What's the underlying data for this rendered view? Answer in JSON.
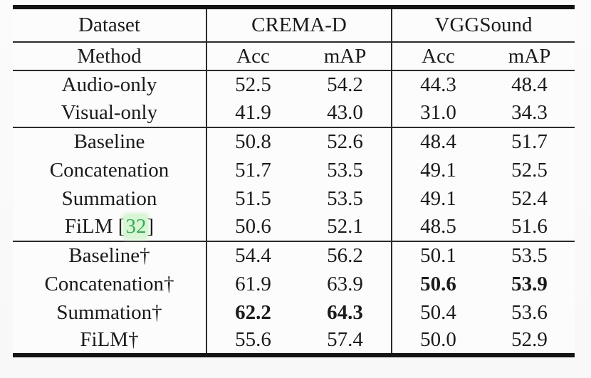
{
  "colors": {
    "text": "#1b1b1b",
    "rule": "#2b2b2b",
    "citation_green": "#2fae57",
    "citation_highlight": "#d9f6d4"
  },
  "header": {
    "dataset_label": "Dataset",
    "method_label": "Method",
    "groups": [
      {
        "name": "CREMA-D"
      },
      {
        "name": "VGGSound"
      }
    ],
    "subcols": [
      "Acc",
      "mAP",
      "Acc",
      "mAP"
    ]
  },
  "rows": [
    {
      "method": "Audio-only",
      "values": [
        "52.5",
        "54.2",
        "44.3",
        "48.4"
      ],
      "bold": [
        false,
        false,
        false,
        false
      ]
    },
    {
      "method": "Visual-only",
      "values": [
        "41.9",
        "43.0",
        "31.0",
        "34.3"
      ],
      "bold": [
        false,
        false,
        false,
        false
      ]
    },
    {
      "method": "Baseline",
      "values": [
        "50.8",
        "52.6",
        "48.4",
        "51.7"
      ],
      "bold": [
        false,
        false,
        false,
        false
      ]
    },
    {
      "method": "Concatenation",
      "values": [
        "51.7",
        "53.5",
        "49.1",
        "52.5"
      ],
      "bold": [
        false,
        false,
        false,
        false
      ]
    },
    {
      "method": "Summation",
      "values": [
        "51.5",
        "53.5",
        "49.1",
        "52.4"
      ],
      "bold": [
        false,
        false,
        false,
        false
      ]
    },
    {
      "method_prefix": "FiLM [",
      "citation": "32",
      "method_suffix": "]",
      "values": [
        "50.6",
        "52.1",
        "48.5",
        "51.6"
      ],
      "bold": [
        false,
        false,
        false,
        false
      ]
    },
    {
      "method": "Baseline†",
      "values": [
        "54.4",
        "56.2",
        "50.1",
        "53.5"
      ],
      "bold": [
        false,
        false,
        false,
        false
      ]
    },
    {
      "method": "Concatenation†",
      "values": [
        "61.9",
        "63.9",
        "50.6",
        "53.9"
      ],
      "bold": [
        false,
        false,
        true,
        true
      ]
    },
    {
      "method": "Summation†",
      "values": [
        "62.2",
        "64.3",
        "50.4",
        "53.6"
      ],
      "bold": [
        true,
        true,
        false,
        false
      ]
    },
    {
      "method": "FiLM†",
      "values": [
        "55.6",
        "57.4",
        "50.0",
        "52.9"
      ],
      "bold": [
        false,
        false,
        false,
        false
      ]
    }
  ]
}
